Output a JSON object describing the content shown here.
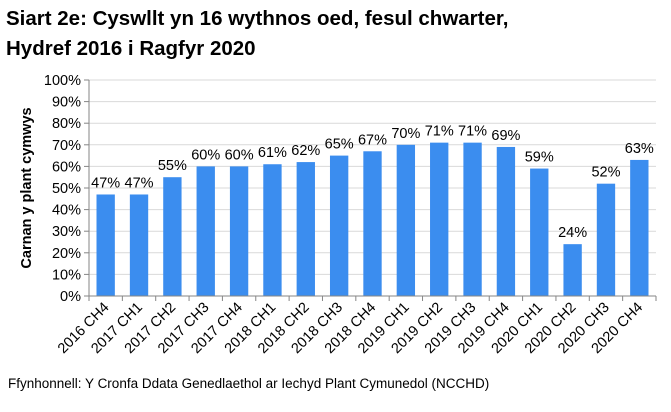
{
  "title_line1": "Siart 2e: Cyswllt yn 16 wythnos oed, fesul chwarter,",
  "title_line2": "Hydref 2016 i Ragfyr 2020",
  "source": "Ffynhonnell: Y Cronfa Ddata Genedlaethol ar Iechyd Plant Cymunedol (NCCHD)",
  "chart_data": {
    "type": "bar",
    "title": "Siart 2e: Cyswllt yn 16 wythnos oed, fesul chwarter, Hydref 2016 i Ragfyr 2020",
    "xlabel": "",
    "ylabel": "Carnan y plant cymwys",
    "ylim": [
      0,
      100
    ],
    "yticks": [
      "0%",
      "10%",
      "20%",
      "30%",
      "40%",
      "50%",
      "60%",
      "70%",
      "80%",
      "90%",
      "100%"
    ],
    "grid": true,
    "bar_color": "#3b8def",
    "categories": [
      "2016 CH4",
      "2017 CH1",
      "2017 CH2",
      "2017 CH3",
      "2017 CH4",
      "2018 CH1",
      "2018 CH2",
      "2018 CH3",
      "2018 CH4",
      "2019 CH1",
      "2019 CH2",
      "2019 CH3",
      "2019 CH4",
      "2020 CH1",
      "2020 CH2",
      "2020 CH3",
      "2020 CH4"
    ],
    "values": [
      47,
      47,
      55,
      60,
      60,
      61,
      62,
      65,
      67,
      70,
      71,
      71,
      69,
      59,
      24,
      52,
      63
    ],
    "data_labels": [
      "47%",
      "47%",
      "55%",
      "60%",
      "60%",
      "61%",
      "62%",
      "65%",
      "67%",
      "70%",
      "71%",
      "71%",
      "69%",
      "59%",
      "24%",
      "52%",
      "63%"
    ]
  }
}
